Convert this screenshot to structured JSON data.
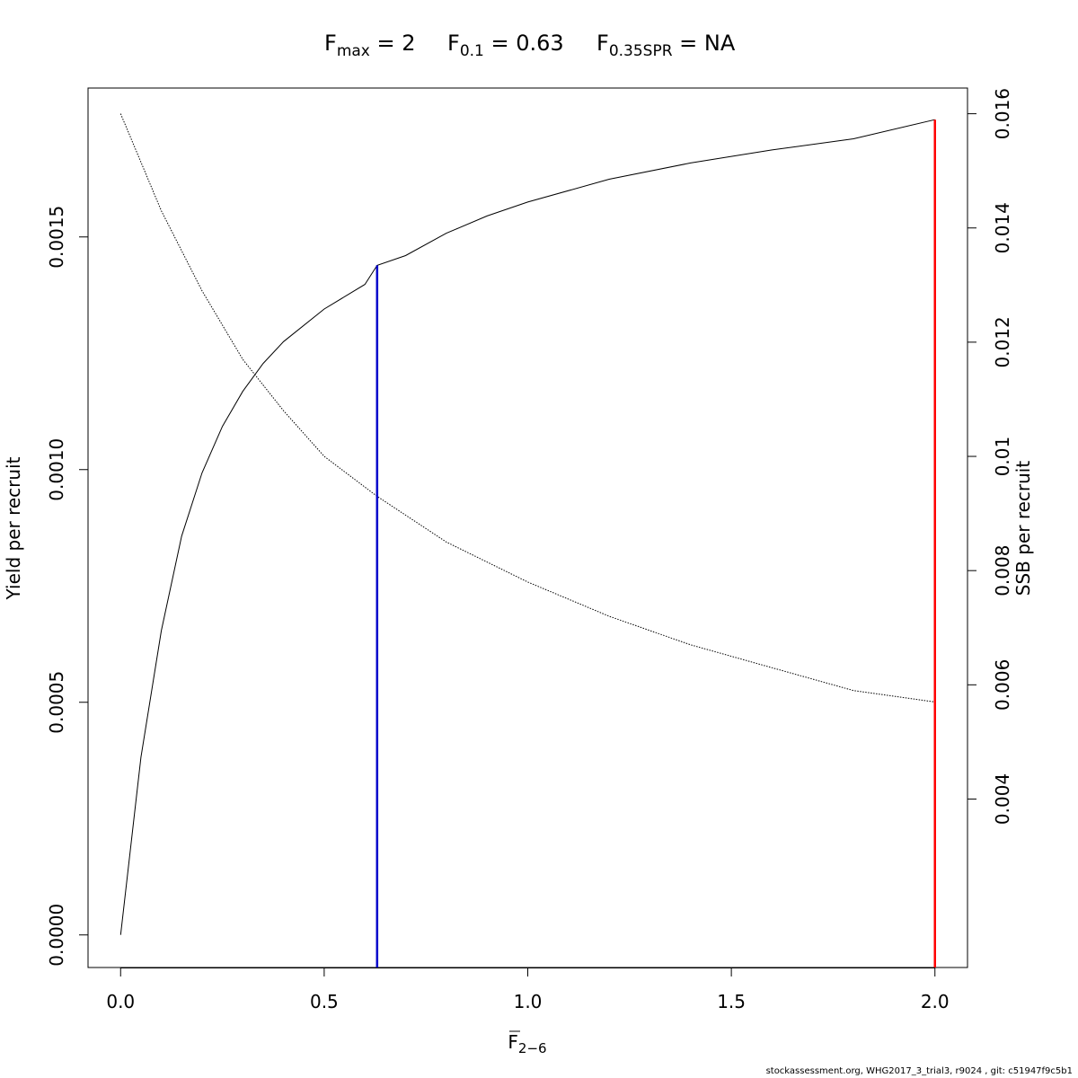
{
  "chart_data": {
    "type": "line",
    "title_parts": {
      "fmax": {
        "main": "F",
        "sub": "max",
        "rest": " = 2"
      },
      "f01": {
        "main": "F",
        "sub": "0.1",
        "rest": " = 0.63"
      },
      "fspr": {
        "main": "F",
        "sub": "0.35SPR",
        "rest": " = NA"
      }
    },
    "xlabel": {
      "main": "F",
      "sub": "2−6"
    },
    "ylabel_left": "Yield per recruit",
    "ylabel_right": "SSB per recruit",
    "xlim": [
      -0.08,
      2.08
    ],
    "ylim_left": [
      -7e-05,
      0.00182
    ],
    "ylim_right": [
      0.00105,
      0.01645
    ],
    "x_ticks": [
      {
        "value": 0.0,
        "label": "0.0"
      },
      {
        "value": 0.5,
        "label": "0.5"
      },
      {
        "value": 1.0,
        "label": "1.0"
      },
      {
        "value": 1.5,
        "label": "1.5"
      },
      {
        "value": 2.0,
        "label": "2.0"
      }
    ],
    "y_left_ticks": [
      {
        "value": 0.0,
        "label": "0.0000"
      },
      {
        "value": 0.0005,
        "label": "0.0005"
      },
      {
        "value": 0.001,
        "label": "0.0010"
      },
      {
        "value": 0.0015,
        "label": "0.0015"
      }
    ],
    "y_right_ticks": [
      {
        "value": 0.004,
        "label": "0.004"
      },
      {
        "value": 0.006,
        "label": "0.006"
      },
      {
        "value": 0.008,
        "label": "0.008"
      },
      {
        "value": 0.01,
        "label": "0.01"
      },
      {
        "value": 0.012,
        "label": "0.012"
      },
      {
        "value": 0.014,
        "label": "0.014"
      },
      {
        "value": 0.016,
        "label": "0.016"
      }
    ],
    "series": [
      {
        "axis": "left",
        "style": "solid",
        "color": "#000000",
        "x": [
          0,
          0.05,
          0.1,
          0.15,
          0.2,
          0.25,
          0.3,
          0.35,
          0.4,
          0.5,
          0.6,
          0.63,
          0.7,
          0.8,
          0.9,
          1.0,
          1.2,
          1.4,
          1.6,
          1.8,
          2.0
        ],
        "y": [
          0,
          0.000382,
          0.000654,
          0.000857,
          0.000993,
          0.001093,
          0.001168,
          0.001228,
          0.001275,
          0.001345,
          0.001398,
          0.001439,
          0.00146,
          0.001508,
          0.001545,
          0.001575,
          0.001624,
          0.001659,
          0.001687,
          0.001711,
          0.001752
        ]
      },
      {
        "axis": "right",
        "style": "dotted",
        "color": "#000000",
        "x": [
          0,
          0.1,
          0.2,
          0.3,
          0.4,
          0.5,
          0.63,
          0.8,
          1.0,
          1.2,
          1.4,
          1.6,
          1.8,
          2.0
        ],
        "y": [
          0.016,
          0.0143,
          0.0129,
          0.0117,
          0.0108,
          0.01,
          0.0093,
          0.0085,
          0.0078,
          0.0072,
          0.0067,
          0.0063,
          0.0059,
          0.0057
        ]
      }
    ],
    "reference_lines": [
      {
        "name": "F0.1",
        "x": 0.63,
        "y_top": 0.001439,
        "color": "#0000cc"
      },
      {
        "name": "Fmax",
        "x": 2.0,
        "y_top": 0.001752,
        "color": "#ff0000"
      }
    ]
  },
  "footer": "stockassessment.org, WHG2017_3_trial3, r9024 , git: c51947f9c5b1"
}
